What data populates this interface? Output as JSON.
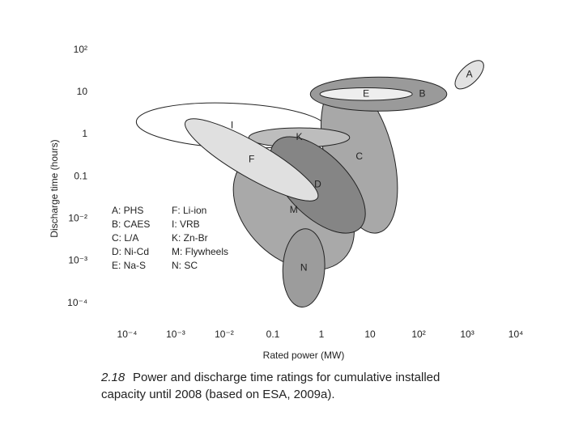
{
  "chart_data": {
    "type": "ellipse-region",
    "x_label": "Rated power (MW)",
    "y_label": "Discharge time (hours)",
    "log_x": true,
    "log_y": true,
    "xlim": [
      2e-05,
      50000
    ],
    "ylim": [
      3e-05,
      200
    ],
    "xticks": [
      {
        "value": 0.0001,
        "label": "10⁻⁴"
      },
      {
        "value": 0.001,
        "label": "10⁻³"
      },
      {
        "value": 0.01,
        "label": "10⁻²"
      },
      0.1,
      1,
      10,
      {
        "value": 100,
        "label": "10²"
      },
      {
        "value": 1000,
        "label": "10³"
      },
      {
        "value": 10000,
        "label": "10⁴"
      }
    ],
    "yticks": [
      {
        "value": 0.0001,
        "label": "10⁻⁴"
      },
      {
        "value": 0.001,
        "label": "10⁻³"
      },
      {
        "value": 0.01,
        "label": "10⁻²"
      },
      0.1,
      1,
      10,
      {
        "value": 100,
        "label": "10²"
      }
    ],
    "regions": [
      {
        "label": "A",
        "legend": "A: PHS",
        "from": [
          600,
          12.9
        ],
        "to": [
          2040,
          52
        ],
        "width": 0.18,
        "color": "#e2e2e2"
      },
      {
        "label": "B",
        "legend": "B: CAES",
        "from": [
          0.59,
          9.0
        ],
        "to": [
          380,
          9.0
        ],
        "width": 0.35,
        "color": "#9a9a9a"
      },
      {
        "label": "C",
        "legend": "C: L/A",
        "from": [
          2.4,
          18
        ],
        "to": [
          15,
          0.0047
        ],
        "width": 0.7,
        "color": "#a8a8a8"
      },
      {
        "label": "D",
        "legend": "D: Ni-Cd",
        "from": [
          0.114,
          0.67
        ],
        "to": [
          6.2,
          0.006
        ],
        "width": 0.63,
        "color": "#858585"
      },
      {
        "label": "E",
        "legend": "E: Na-S",
        "from": [
          0.93,
          9.0
        ],
        "to": [
          74,
          9.0
        ],
        "width": 0.13,
        "color": "#eeeeee"
      },
      {
        "label": "F",
        "legend": "F: Li-ion",
        "from": [
          0.0016,
          2.0
        ],
        "to": [
          0.83,
          0.031
        ],
        "width": 0.36,
        "color": "#e0e0e0"
      },
      {
        "label": "I",
        "legend": "I: VRB",
        "from": [
          0.000155,
          2.0
        ],
        "to": [
          1.35,
          1.3
        ],
        "width": 0.46,
        "color": "#ffffff"
      },
      {
        "label": "K",
        "legend": "K: Zn-Br",
        "from": [
          0.032,
          0.84
        ],
        "to": [
          3.8,
          0.84
        ],
        "width": 0.2,
        "color": "#bdbdbd"
      },
      {
        "label": "M",
        "legend": "M: Flywheels",
        "from": [
          0.025,
          0.22
        ],
        "to": [
          2.9,
          0.00114
        ],
        "width": 1.0,
        "color": "#a9a9a9"
      },
      {
        "label": "N",
        "legend": "N: SC",
        "from": [
          0.48,
          0.0058
        ],
        "to": [
          0.39,
          8.1e-05
        ],
        "width": 0.43,
        "color": "#9c9c9c"
      }
    ],
    "caption": {
      "number": "2.18",
      "lines": [
        "Power and discharge time ratings for cumulative installed",
        "capacity until 2008 (based on ESA, 2009a)."
      ]
    }
  }
}
